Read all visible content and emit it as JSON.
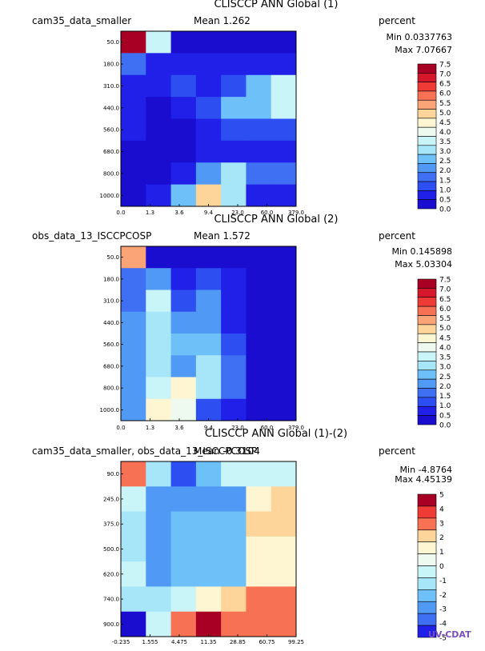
{
  "palette": [
    "#1a0dd0",
    "#2020e8",
    "#2d4ef0",
    "#3f6ff3",
    "#509af5",
    "#6ec0f8",
    "#a6e6f8",
    "#c9f4f8",
    "#eefaf0",
    "#fef6d2",
    "#fdd59a",
    "#faa478",
    "#f77155",
    "#ee3b35",
    "#d4172a",
    "#a80025"
  ],
  "chart_data": [
    {
      "type": "heatmap",
      "title": "CLISCCP ANN Global (1)",
      "left_label": "cam35_data_smaller",
      "mean_label": "Mean 1.262",
      "units": "percent",
      "min_label": "Min 0.0337763",
      "max_label": "Max 7.07667",
      "y_ticks": [
        "50.0",
        "180.0",
        "310.0",
        "440.0",
        "560.0",
        "680.0",
        "800.0",
        "1000.0"
      ],
      "x_ticks": [
        "0.0",
        "1.3",
        "3.6",
        "9.4",
        "23.0",
        "60.0",
        "379.0"
      ],
      "colorbar_labels": [
        "7.5",
        "7.0",
        "6.5",
        "6.0",
        "5.5",
        "5.0",
        "4.5",
        "4.0",
        "3.5",
        "3.0",
        "2.5",
        "2.0",
        "1.5",
        "1.0",
        "0.5",
        "0.0"
      ],
      "colorbar_colors": [
        15,
        14,
        13,
        12,
        11,
        10,
        9,
        8,
        7,
        6,
        5,
        4,
        3,
        2,
        1,
        0
      ],
      "cells": [
        [
          15,
          7,
          0,
          0,
          0,
          0,
          0
        ],
        [
          3,
          1,
          1,
          1,
          1,
          1,
          1
        ],
        [
          1,
          1,
          2,
          1,
          2,
          5,
          7
        ],
        [
          1,
          0,
          1,
          2,
          5,
          5,
          7
        ],
        [
          1,
          0,
          0,
          1,
          2,
          2,
          2
        ],
        [
          0,
          0,
          0,
          1,
          1,
          1,
          1
        ],
        [
          0,
          0,
          1,
          4,
          6,
          3,
          3
        ],
        [
          0,
          1,
          5,
          10,
          6,
          1,
          1
        ]
      ]
    },
    {
      "type": "heatmap",
      "title": "CLISCCP ANN Global (2)",
      "left_label": "obs_data_13_ISCCPCOSP",
      "mean_label": "Mean 1.572",
      "units": "percent",
      "min_label": "Min 0.145898",
      "max_label": "Max 5.03304",
      "y_ticks": [
        "50.0",
        "180.0",
        "310.0",
        "440.0",
        "560.0",
        "680.0",
        "800.0",
        "1000.0"
      ],
      "x_ticks": [
        "0.0",
        "1.3",
        "3.6",
        "9.4",
        "23.0",
        "60.0",
        "379.0"
      ],
      "colorbar_labels": [
        "7.5",
        "7.0",
        "6.5",
        "6.0",
        "5.5",
        "5.0",
        "4.5",
        "4.0",
        "3.5",
        "3.0",
        "2.5",
        "2.0",
        "1.5",
        "1.0",
        "0.5",
        "0.0"
      ],
      "colorbar_colors": [
        15,
        14,
        13,
        12,
        11,
        10,
        9,
        8,
        7,
        6,
        5,
        4,
        3,
        2,
        1,
        0
      ],
      "cells": [
        [
          11,
          0,
          0,
          0,
          0,
          0,
          0
        ],
        [
          3,
          4,
          1,
          2,
          1,
          0,
          0
        ],
        [
          3,
          7,
          2,
          4,
          1,
          0,
          0
        ],
        [
          4,
          6,
          4,
          4,
          1,
          0,
          0
        ],
        [
          4,
          6,
          5,
          5,
          2,
          0,
          0
        ],
        [
          4,
          6,
          4,
          6,
          3,
          0,
          0
        ],
        [
          4,
          7,
          9,
          6,
          3,
          0,
          0
        ],
        [
          4,
          9,
          8,
          2,
          1,
          0,
          0
        ]
      ]
    },
    {
      "type": "heatmap",
      "title": "CLISCCP ANN Global (1)-(2)",
      "left_label": "cam35_data_smaller, obs_data_13_ISCCPCOSP",
      "mean_label": "Mean -0.3104",
      "units": "percent",
      "min_label": "Min -4.8764",
      "max_label": "Max 4.45139",
      "y_ticks": [
        "90.0",
        "245.0",
        "375.0",
        "500.0",
        "620.0",
        "740.0",
        "900.0"
      ],
      "x_ticks": [
        "-0.235",
        "1.555",
        "4.475",
        "11.35",
        "28.85",
        "60.75",
        "99.25"
      ],
      "colorbar_labels": [
        "5",
        "4",
        "3",
        "2",
        "1",
        "0",
        "-1",
        "-2",
        "-3",
        "-4",
        "-5"
      ],
      "colorbar_colors": [
        15,
        13,
        12,
        10,
        9,
        8,
        7,
        6,
        5,
        4,
        3,
        1
      ],
      "cells": [
        [
          12,
          6,
          2,
          5,
          7,
          7,
          7
        ],
        [
          7,
          4,
          4,
          4,
          4,
          9,
          10
        ],
        [
          6,
          4,
          5,
          5,
          5,
          10,
          10
        ],
        [
          6,
          4,
          5,
          5,
          5,
          9,
          9
        ],
        [
          7,
          4,
          5,
          5,
          5,
          9,
          9
        ],
        [
          6,
          6,
          7,
          9,
          10,
          12,
          12
        ],
        [
          0,
          7,
          12,
          15,
          12,
          12,
          12
        ]
      ]
    }
  ],
  "logo": {
    "text": "UV-CDAT"
  }
}
